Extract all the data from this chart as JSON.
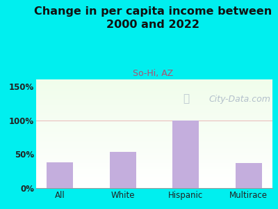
{
  "title": "Change in per capita income between\n2000 and 2022",
  "subtitle": "So-Hi, AZ",
  "categories": [
    "All",
    "White",
    "Hispanic",
    "Multirace"
  ],
  "values": [
    38,
    53,
    100,
    37
  ],
  "bar_color": "#c4aedd",
  "title_fontsize": 11.5,
  "title_color": "#111111",
  "subtitle_color": "#b05070",
  "subtitle_fontsize": 9,
  "yticks": [
    0,
    50,
    100,
    150
  ],
  "ylim": [
    0,
    160
  ],
  "outer_bg": "#00efef",
  "grid_color": "#e8b8b8",
  "watermark": "City-Data.com",
  "watermark_color": "#a8b5c5",
  "watermark_fontsize": 9
}
